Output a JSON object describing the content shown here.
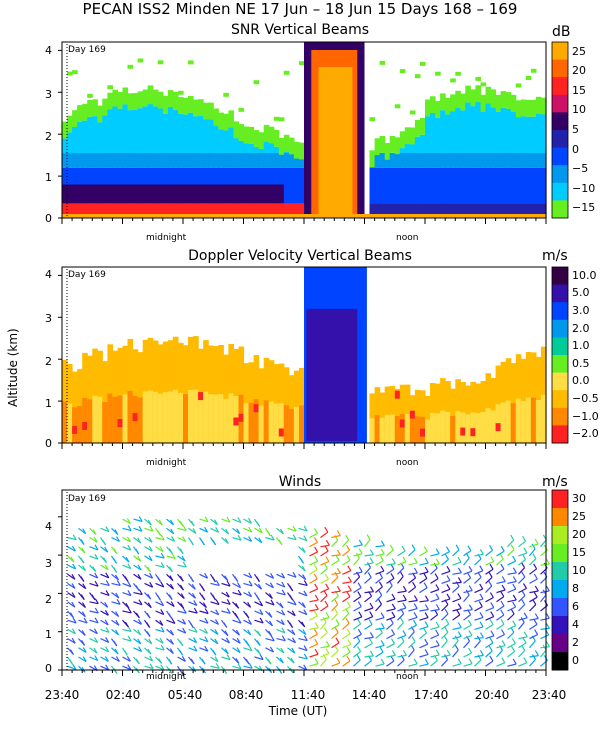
{
  "title": "PECAN ISS2 Minden NE  17 Jun – 18 Jun 15 Days 168 – 169",
  "colors": {
    "snr": [
      "#66ee22",
      "#00ccff",
      "#0099ee",
      "#0044ff",
      "#2222aa",
      "#330066",
      "#cc1166",
      "#ff2222",
      "#ff6600",
      "#ffaa00",
      "#ffcc33"
    ],
    "doppler": [
      "#ff2222",
      "#ff8800",
      "#ffbb00",
      "#ffdd44",
      "#66ee22",
      "#00cc99",
      "#0099ee",
      "#0044ff",
      "#3311aa",
      "#330044"
    ],
    "wind": [
      "#000000",
      "#660088",
      "#3311bb",
      "#3355ff",
      "#00aaee",
      "#22ccaa",
      "#66ee22",
      "#aaee22",
      "#ff8800",
      "#ff2222"
    ]
  },
  "panels": [
    {
      "name": "snr",
      "title": "SNR Vertical Beams",
      "units": "dB",
      "day_label": "Day 169",
      "midnight_label": "midnight",
      "noon_label": "noon",
      "colorbar_labels": [
        "25",
        "20",
        "15",
        "10",
        "5",
        "0",
        "−5",
        "−10",
        "−15"
      ]
    },
    {
      "name": "doppler",
      "title": "Doppler Velocity Vertical Beams",
      "units": "m/s",
      "day_label": "Day 169",
      "midnight_label": "midnight",
      "noon_label": "noon",
      "colorbar_labels": [
        "10.0",
        "5.0",
        "3.0",
        "2.0",
        "1.0",
        "0.5",
        "0.0",
        "−0.5",
        "−1.0",
        "−2.0"
      ]
    },
    {
      "name": "winds",
      "title": "Winds",
      "units": "m/s",
      "day_label": "Day 169",
      "midnight_label": "midnight",
      "noon_label": "noon",
      "colorbar_labels": [
        "30",
        "25",
        "20",
        "15",
        "10",
        "8",
        "6",
        "4",
        "2",
        "0"
      ]
    }
  ],
  "chart_data": [
    {
      "type": "heatmap",
      "title": "SNR Vertical Beams",
      "units": "dB",
      "xlabel": "",
      "ylabel": "",
      "ylim": [
        0,
        4.2
      ],
      "yticks": [
        "0",
        "1",
        "2",
        "3",
        "4"
      ],
      "color_levels": [
        -15,
        -10,
        -5,
        0,
        5,
        10,
        15,
        20,
        25
      ],
      "annotations": [
        "Day 169",
        "midnight",
        "noon"
      ]
    },
    {
      "type": "heatmap",
      "title": "Doppler Velocity Vertical Beams",
      "units": "m/s",
      "xlabel": "",
      "ylabel": "Altitude (km)",
      "ylim": [
        0,
        4.2
      ],
      "yticks": [
        "0",
        "1",
        "2",
        "3",
        "4"
      ],
      "color_levels": [
        -2.0,
        -1.0,
        -0.5,
        0.0,
        0.5,
        1.0,
        2.0,
        3.0,
        5.0,
        10.0
      ],
      "annotations": [
        "Day 169",
        "midnight",
        "noon"
      ]
    },
    {
      "type": "scatter",
      "title": "Winds",
      "units": "m/s",
      "xlabel": "Time (UT)",
      "ylabel": "",
      "ylim": [
        0,
        4.7
      ],
      "yticks": [
        "0",
        "1",
        "2",
        "3",
        "4"
      ],
      "xticks": [
        "23:40",
        "02:40",
        "05:40",
        "08:40",
        "11:40",
        "14:40",
        "17:40",
        "20:40",
        "23:40"
      ],
      "color_levels": [
        0,
        2,
        4,
        6,
        8,
        10,
        15,
        20,
        25,
        30
      ],
      "annotations": [
        "Day 169",
        "midnight",
        "noon"
      ]
    }
  ],
  "ylabel": "Altitude (km)",
  "xlabel": "Time (UT)",
  "xticks": [
    "23:40",
    "02:40",
    "05:40",
    "08:40",
    "11:40",
    "14:40",
    "17:40",
    "20:40",
    "23:40"
  ]
}
